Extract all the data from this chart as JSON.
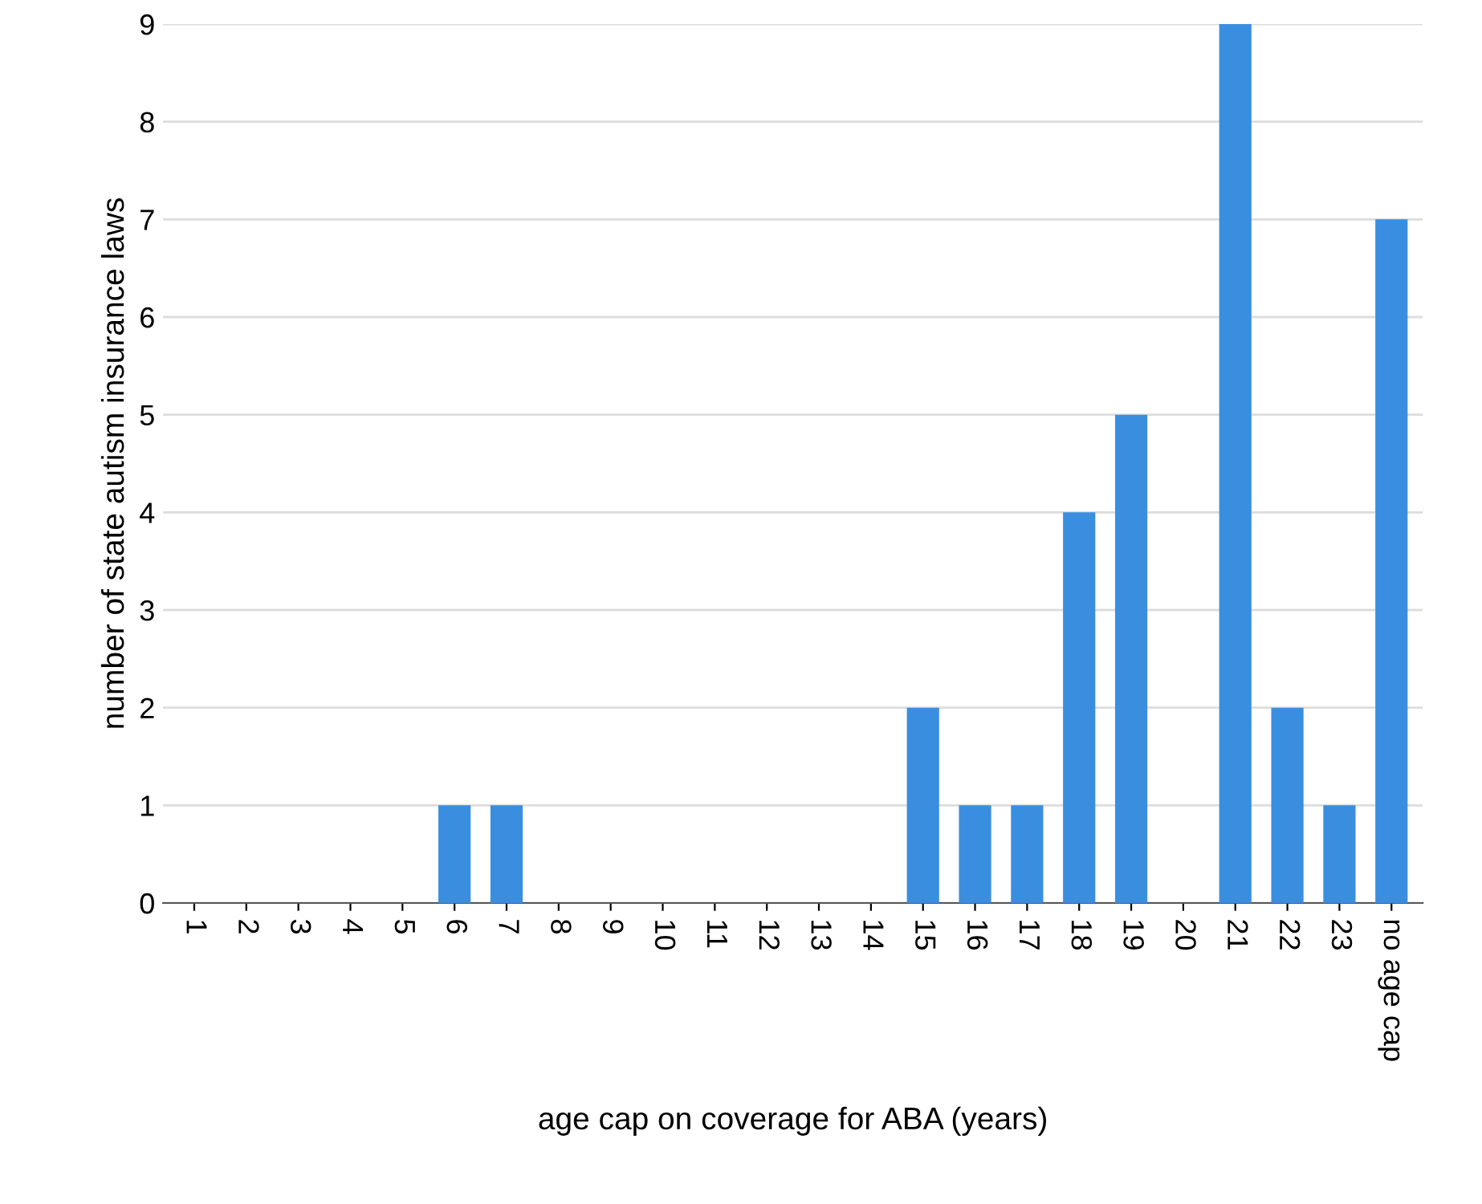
{
  "chart_data": {
    "type": "bar",
    "xlabel": "age cap on coverage for ABA (years)",
    "ylabel": "number of state autism insurance laws",
    "categories": [
      "1",
      "2",
      "3",
      "4",
      "5",
      "6",
      "7",
      "8",
      "9",
      "10",
      "11",
      "12",
      "13",
      "14",
      "15",
      "16",
      "17",
      "18",
      "19",
      "20",
      "21",
      "22",
      "23",
      "no age cap"
    ],
    "values": [
      0,
      0,
      0,
      0,
      0,
      1,
      1,
      0,
      0,
      0,
      0,
      0,
      0,
      0,
      2,
      1,
      1,
      4,
      5,
      0,
      9,
      2,
      1,
      7
    ],
    "color": "#3a8ee0",
    "ylim": [
      0,
      9
    ],
    "yticks": [
      0,
      1,
      2,
      3,
      4,
      5,
      6,
      7,
      8,
      9
    ],
    "grid": "y",
    "legend": false
  }
}
